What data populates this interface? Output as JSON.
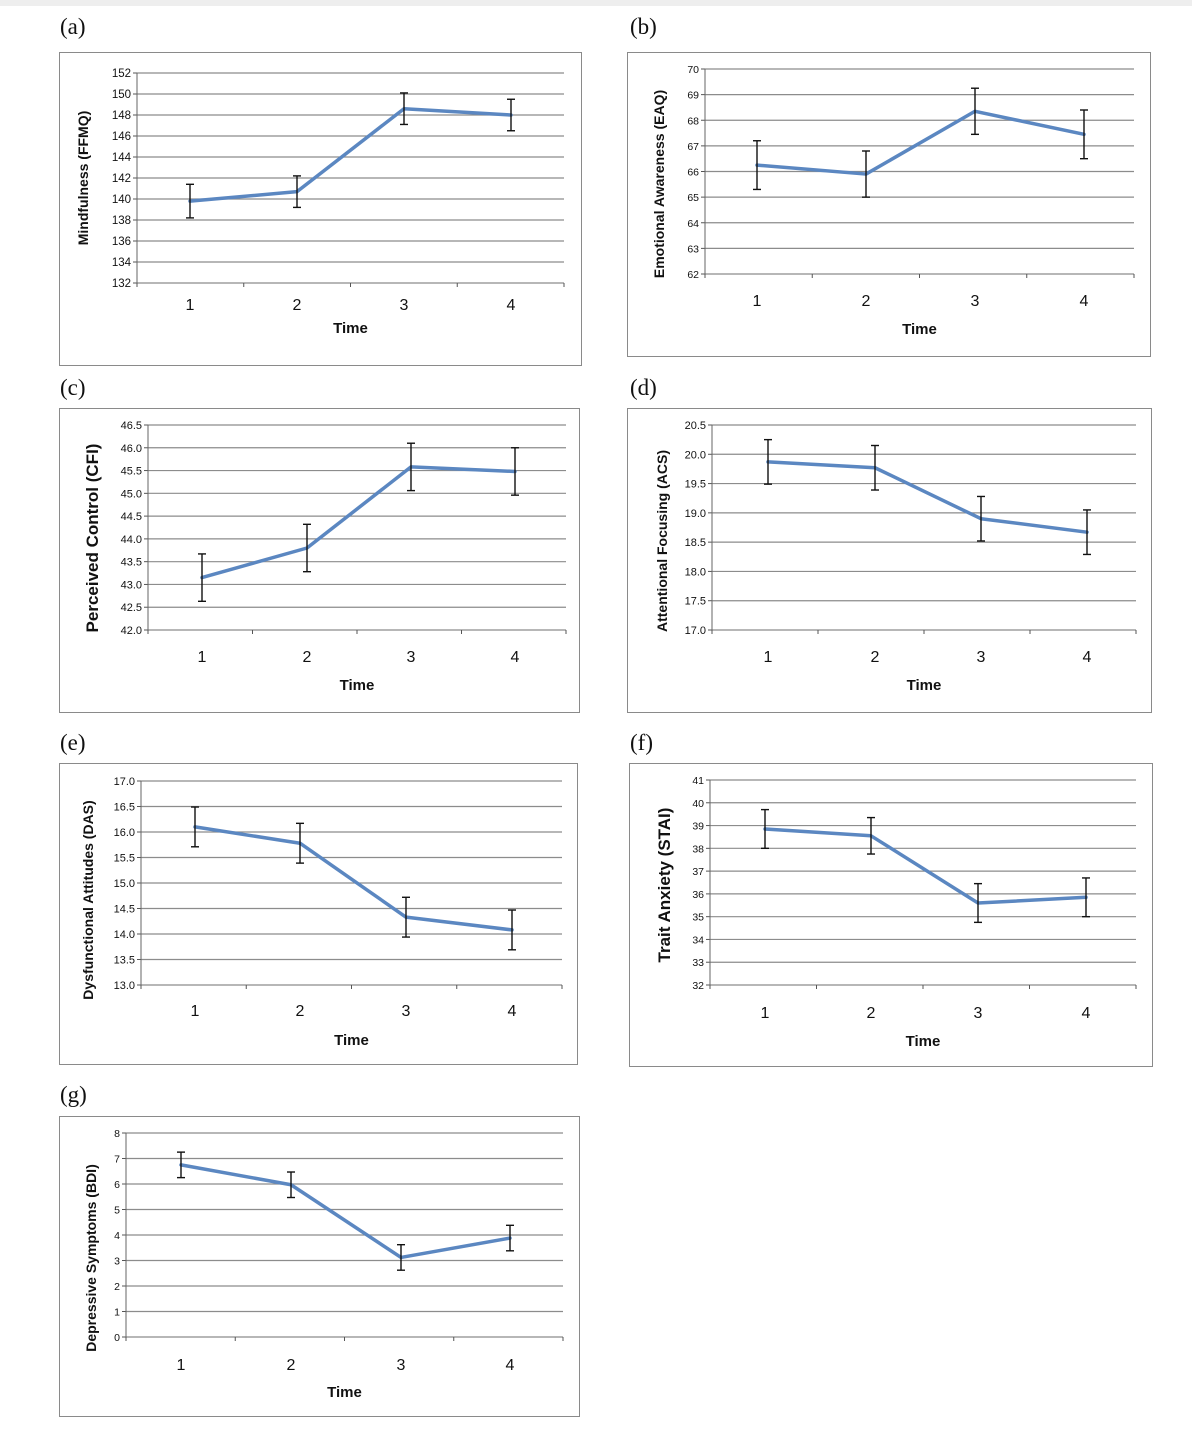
{
  "chart_data": [
    {
      "panel": "(a)",
      "type": "line",
      "x": [
        1,
        2,
        3,
        4
      ],
      "xlabel": "Time",
      "ylabel": "Mindfulness (FFMQ)",
      "values": [
        139.8,
        140.7,
        148.6,
        148.0
      ],
      "errors": [
        1.6,
        1.5,
        1.5,
        1.5
      ],
      "ylim": [
        132,
        152
      ],
      "yticks": [
        "132",
        "134",
        "136",
        "138",
        "140",
        "142",
        "144",
        "146",
        "148",
        "150",
        "152"
      ],
      "xticks": [
        "1",
        "2",
        "3",
        "4"
      ]
    },
    {
      "panel": "(b)",
      "type": "line",
      "x": [
        1,
        2,
        3,
        4
      ],
      "xlabel": "Time",
      "ylabel": "Emotional Awareness (EAQ)",
      "values": [
        66.25,
        65.9,
        68.35,
        67.45
      ],
      "errors": [
        0.95,
        0.9,
        0.9,
        0.95
      ],
      "ylim": [
        62,
        70
      ],
      "yticks": [
        "62",
        "63",
        "64",
        "65",
        "66",
        "67",
        "68",
        "69",
        "70"
      ],
      "xticks": [
        "1",
        "2",
        "3",
        "4"
      ]
    },
    {
      "panel": "(c)",
      "type": "line",
      "x": [
        1,
        2,
        3,
        4
      ],
      "xlabel": "Time",
      "ylabel": "Perceived Control (CFI)",
      "values": [
        43.15,
        43.8,
        45.58,
        45.48
      ],
      "errors": [
        0.52,
        0.52,
        0.52,
        0.52
      ],
      "ylim": [
        42.0,
        46.5
      ],
      "yticks": [
        "42.0",
        "42.5",
        "43.0",
        "43.5",
        "44.0",
        "44.5",
        "45.0",
        "45.5",
        "46.0",
        "46.5"
      ],
      "xticks": [
        "1",
        "2",
        "3",
        "4"
      ]
    },
    {
      "panel": "(d)",
      "type": "line",
      "x": [
        1,
        2,
        3,
        4
      ],
      "xlabel": "Time",
      "ylabel": "Attentional Focusing (ACS)",
      "values": [
        19.87,
        19.77,
        18.9,
        18.67
      ],
      "errors": [
        0.38,
        0.38,
        0.38,
        0.38
      ],
      "ylim": [
        17.0,
        20.5
      ],
      "yticks": [
        "17.0",
        "17.5",
        "18.0",
        "18.5",
        "19.0",
        "19.5",
        "20.0",
        "20.5"
      ],
      "xticks": [
        "1",
        "2",
        "3",
        "4"
      ]
    },
    {
      "panel": "(e)",
      "type": "line",
      "x": [
        1,
        2,
        3,
        4
      ],
      "xlabel": "Time",
      "ylabel": "Dysfunctional Attitudes (DAS)",
      "values": [
        16.1,
        15.78,
        14.33,
        14.08
      ],
      "errors": [
        0.39,
        0.39,
        0.39,
        0.39
      ],
      "ylim": [
        13.0,
        17.0
      ],
      "yticks": [
        "13.0",
        "13.5",
        "14.0",
        "14.5",
        "15.0",
        "15.5",
        "16.0",
        "16.5",
        "17.0"
      ],
      "xticks": [
        "1",
        "2",
        "3",
        "4"
      ]
    },
    {
      "panel": "(f)",
      "type": "line",
      "x": [
        1,
        2,
        3,
        4
      ],
      "xlabel": "Time",
      "ylabel": "Trait Anxiety (STAI)",
      "values": [
        38.85,
        38.55,
        35.6,
        35.85
      ],
      "errors": [
        0.85,
        0.8,
        0.85,
        0.85
      ],
      "ylim": [
        32,
        41
      ],
      "yticks": [
        "32",
        "33",
        "34",
        "35",
        "36",
        "37",
        "38",
        "39",
        "40",
        "41"
      ],
      "xticks": [
        "1",
        "2",
        "3",
        "4"
      ]
    },
    {
      "panel": "(g)",
      "type": "line",
      "x": [
        1,
        2,
        3,
        4
      ],
      "xlabel": "Time",
      "ylabel": "Depressive Symptoms (BDI)",
      "values": [
        6.75,
        5.97,
        3.12,
        3.88
      ],
      "errors": [
        0.5,
        0.5,
        0.5,
        0.5
      ],
      "ylim": [
        0,
        8
      ],
      "yticks": [
        "0",
        "1",
        "2",
        "3",
        "4",
        "5",
        "6",
        "7",
        "8"
      ],
      "xticks": [
        "1",
        "2",
        "3",
        "4"
      ]
    }
  ],
  "style": {
    "line_color": "#5b87c1",
    "grid_color": "#8c8c8c",
    "error_color": "#111111",
    "frame_color": "#8a8a8a"
  }
}
